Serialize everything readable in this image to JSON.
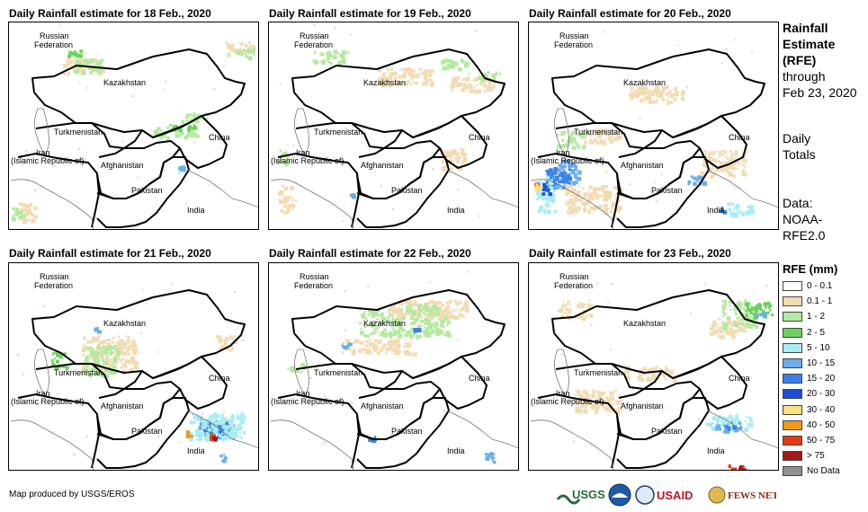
{
  "panels": [
    {
      "title": "Daily Rainfall estimate for 18 Feb., 2020"
    },
    {
      "title": "Daily Rainfall estimate for 19 Feb., 2020"
    },
    {
      "title": "Daily Rainfall estimate for 20 Feb., 2020"
    },
    {
      "title": "Daily Rainfall estimate for 21 Feb., 2020"
    },
    {
      "title": "Daily Rainfall estimate for 22 Feb., 2020"
    },
    {
      "title": "Daily Rainfall estimate for 23 Feb., 2020"
    }
  ],
  "map_labels": {
    "russia_1": "Russian",
    "russia_2": "Federation",
    "kazakhstan": "Kazakhstan",
    "turkmenistan": "Turkmenistan",
    "iran_1": "Iran",
    "iran_2": "(Islamic Republic of)",
    "afghanistan": "Afghanistan",
    "pakistan": "Pakistan",
    "china": "China",
    "india": "India"
  },
  "side": {
    "heading_1": "Rainfall",
    "heading_2": "Estimate",
    "heading_3": "(RFE)",
    "through": "through",
    "date": "Feb 23, 2020",
    "daily": "Daily",
    "totals": "Totals",
    "data_label": "Data:",
    "data_src_1": "NOAA-",
    "data_src_2": "RFE2.0"
  },
  "legend": {
    "title": "RFE (mm)",
    "items": [
      {
        "label": "0 - 0.1",
        "color": "#ffffff"
      },
      {
        "label": "0.1 - 1",
        "color": "#f2dcb4"
      },
      {
        "label": "1 - 2",
        "color": "#b4eaa0"
      },
      {
        "label": "2 - 5",
        "color": "#6cd25e"
      },
      {
        "label": "5 - 10",
        "color": "#a8eef4"
      },
      {
        "label": "10 - 15",
        "color": "#6aaef0"
      },
      {
        "label": "15 - 20",
        "color": "#3a82e8"
      },
      {
        "label": "20 - 30",
        "color": "#1c50d8"
      },
      {
        "label": "30 - 40",
        "color": "#ffe080"
      },
      {
        "label": "40 - 50",
        "color": "#f09a18"
      },
      {
        "label": "50 - 75",
        "color": "#e83a10"
      },
      {
        "label": "> 75",
        "color": "#a01818"
      },
      {
        "label": "No Data",
        "color": "#909090"
      }
    ]
  },
  "footer": "Map produced by USGS/EROS",
  "logos": [
    "USGS",
    "NOAA",
    "USAID",
    "FEWS NET"
  ]
}
